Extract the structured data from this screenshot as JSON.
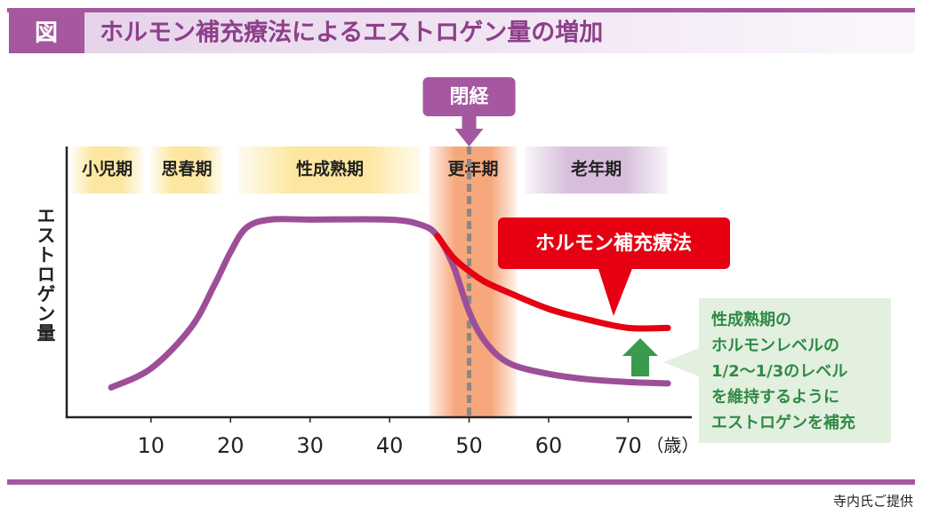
{
  "header": {
    "figure_label": "図",
    "title": "ホルモン補充療法によるエストロゲン量の増加"
  },
  "chart_data": {
    "type": "line",
    "y_label": "エストロゲン量",
    "x_unit": "（歳）",
    "x": [
      5,
      10,
      15,
      18,
      20,
      22,
      25,
      30,
      40,
      44,
      46,
      48,
      50,
      52,
      55,
      60,
      65,
      70,
      75
    ],
    "series": [
      {
        "color": "#9c4f98",
        "values": [
          11,
          18,
          33,
          49,
          61,
          70,
          73,
          73,
          73,
          71,
          67,
          56,
          39,
          28,
          20,
          16,
          14,
          13,
          12.5
        ]
      },
      {
        "name": "ホルモン補充療法",
        "color": "#e60012",
        "values": [
          null,
          null,
          null,
          null,
          null,
          null,
          null,
          null,
          null,
          null,
          67,
          59,
          54,
          50,
          46,
          40,
          36,
          33,
          33
        ]
      }
    ],
    "xlim": [
      -0.6,
      78
    ],
    "ylim": [
      0,
      100
    ],
    "xticks": [
      10,
      20,
      30,
      40,
      50,
      60,
      70
    ],
    "stages": [
      {
        "label": "小児期",
        "start": 0,
        "end": 9,
        "color": "#fde7a0"
      },
      {
        "label": "思春期",
        "start": 10,
        "end": 19,
        "color": "#fde7a0"
      },
      {
        "label": "性成熟期",
        "start": 21,
        "end": 44,
        "color": "#fde7a0"
      },
      {
        "label": "更年期",
        "start": 45,
        "end": 56,
        "color": "#f6a77c"
      },
      {
        "label": "老年期",
        "start": 57,
        "end": 75,
        "color": "#d7bfdc"
      }
    ],
    "menopause": {
      "label": "閉経",
      "age": 50
    }
  },
  "note": [
    "性成熟期の",
    "ホルモンレベルの",
    "1/2～1/3のレベル",
    "を維持するように",
    "エストロゲンを補充"
  ],
  "credit": "寺内氏ご提供"
}
